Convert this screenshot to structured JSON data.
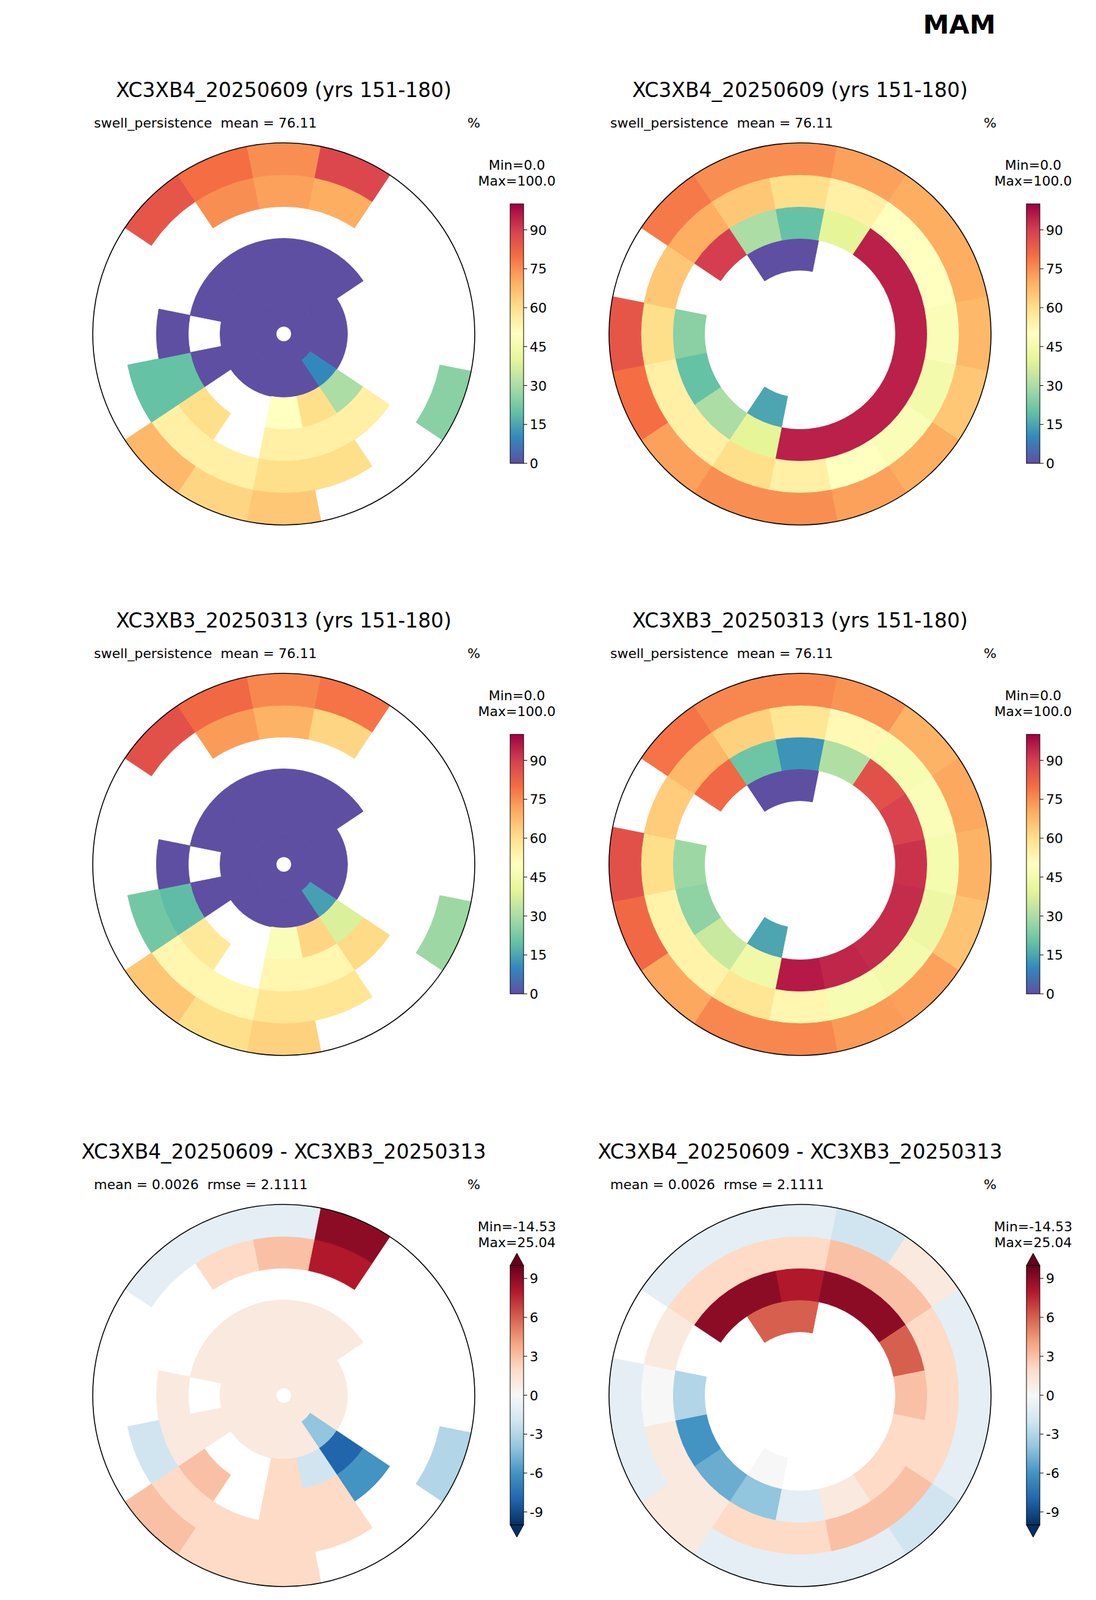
{
  "title": "MAM",
  "chart_data": [
    {
      "type": "heatmap",
      "title": "XC3XB4_20250609 (yrs 151-180)",
      "variable": "swell_persistence",
      "stats": [
        "mean = 76.11"
      ],
      "units": "%",
      "min_label": "Min=0.0",
      "max_label": "Max=100.0",
      "colorbar": {
        "range": [
          0,
          100
        ],
        "ticks": [
          0,
          15,
          30,
          45,
          60,
          75,
          90
        ]
      },
      "cells": [
        [
          0,
          0,
          0,
          0,
          0,
          0,
          0,
          0,
          0,
          0,
          0,
          0,
          0,
          0,
          0,
          0
        ],
        [
          0,
          0,
          0,
          0,
          0,
          0,
          10,
          0,
          0,
          0,
          0,
          0,
          0,
          0,
          0,
          0
        ],
        [
          0,
          0,
          0,
          null,
          null,
          null,
          30,
          60,
          50,
          null,
          null,
          0,
          null,
          0,
          0,
          0
        ],
        [
          null,
          null,
          null,
          null,
          null,
          null,
          55,
          55,
          55,
          null,
          60,
          20,
          0,
          null,
          null,
          null
        ],
        [
          72,
          70,
          null,
          null,
          null,
          null,
          null,
          60,
          60,
          55,
          55,
          20,
          null,
          null,
          null,
          75
        ],
        [
          75,
          88,
          null,
          null,
          null,
          25,
          null,
          null,
          65,
          62,
          68,
          null,
          null,
          null,
          85,
          80
        ]
      ]
    },
    {
      "type": "heatmap",
      "title": "XC3XB4_20250609 (yrs 151-180)",
      "variable": "swell_persistence",
      "stats": [
        "mean = 76.11"
      ],
      "units": "%",
      "min_label": "Min=0.0",
      "max_label": "Max=100.0",
      "colorbar": {
        "range": [
          0,
          100
        ],
        "ticks": [
          0,
          15,
          30,
          45,
          60,
          75,
          90
        ]
      },
      "cells": [
        [
          null,
          null,
          null,
          null,
          null,
          null,
          null,
          null,
          null,
          null,
          null,
          null,
          null,
          null,
          null,
          null
        ],
        [
          null,
          null,
          null,
          null,
          null,
          null,
          null,
          null,
          null,
          null,
          null,
          null,
          null,
          null,
          null,
          null
        ],
        [
          0,
          null,
          null,
          null,
          null,
          null,
          null,
          null,
          null,
          15,
          null,
          null,
          null,
          null,
          null,
          0
        ],
        [
          20,
          40,
          95,
          95,
          95,
          95,
          95,
          95,
          95,
          40,
          30,
          20,
          25,
          null,
          90,
          30
        ],
        [
          60,
          55,
          50,
          50,
          48,
          45,
          48,
          50,
          55,
          60,
          55,
          55,
          60,
          65,
          70,
          65
        ],
        [
          75,
          72,
          70,
          70,
          68,
          65,
          70,
          72,
          75,
          75,
          72,
          80,
          85,
          null,
          78,
          75
        ]
      ]
    },
    {
      "type": "heatmap",
      "title": "XC3XB3_20250313 (yrs 151-180)",
      "variable": "swell_persistence",
      "stats": [
        "mean = 76.11"
      ],
      "units": "%",
      "min_label": "Min=0.0",
      "max_label": "Max=100.0",
      "colorbar": {
        "range": [
          0,
          100
        ],
        "ticks": [
          0,
          15,
          30,
          45,
          60,
          75,
          90
        ]
      },
      "cells": [
        [
          0,
          0,
          0,
          0,
          0,
          0,
          0,
          0,
          0,
          0,
          0,
          0,
          0,
          0,
          0,
          0
        ],
        [
          0,
          0,
          0,
          0,
          0,
          0,
          14,
          0,
          0,
          0,
          0,
          0,
          0,
          0,
          0,
          0
        ],
        [
          0,
          0,
          0,
          null,
          null,
          null,
          38,
          62,
          48,
          null,
          null,
          0,
          null,
          0,
          0,
          0
        ],
        [
          null,
          null,
          null,
          null,
          null,
          null,
          61,
          53,
          53,
          null,
          57,
          19,
          0,
          null,
          null,
          null
        ],
        [
          69,
          62,
          null,
          null,
          null,
          null,
          null,
          58,
          58,
          53,
          53,
          22,
          null,
          null,
          null,
          73
        ],
        [
          76,
          79,
          null,
          null,
          null,
          28,
          null,
          null,
          63,
          60,
          65,
          null,
          null,
          null,
          86,
          81
        ]
      ]
    },
    {
      "type": "heatmap",
      "title": "XC3XB3_20250313 (yrs 151-180)",
      "variable": "swell_persistence",
      "stats": [
        "mean = 76.11"
      ],
      "units": "%",
      "min_label": "Min=0.0",
      "max_label": "Max=100.0",
      "colorbar": {
        "range": [
          0,
          100
        ],
        "ticks": [
          0,
          15,
          30,
          45,
          60,
          75,
          90
        ]
      },
      "cells": [
        [
          null,
          null,
          null,
          null,
          null,
          null,
          null,
          null,
          null,
          null,
          null,
          null,
          null,
          null,
          null,
          null
        ],
        [
          null,
          null,
          null,
          null,
          null,
          null,
          null,
          null,
          null,
          null,
          null,
          null,
          null,
          null,
          null,
          null
        ],
        [
          0,
          null,
          null,
          null,
          null,
          null,
          null,
          null,
          null,
          15,
          null,
          null,
          null,
          null,
          null,
          0
        ],
        [
          12,
          31,
          86,
          89,
          92,
          93,
          93,
          94,
          96,
          44,
          35,
          26,
          28,
          null,
          81,
          21
        ],
        [
          58,
          52,
          47,
          48,
          46,
          43,
          45,
          47,
          53,
          58,
          54,
          54,
          60,
          64,
          68,
          63
        ],
        [
          76,
          74,
          69,
          71,
          69,
          66,
          72,
          73,
          76,
          76,
          71,
          81,
          86,
          null,
          79,
          76
        ]
      ]
    },
    {
      "type": "heatmap",
      "title": "XC3XB4_20250609 - XC3XB3_20250313",
      "stats": [
        "mean = 0.0026",
        "rmse = 2.1111"
      ],
      "units": "%",
      "min_label": "Min=-14.53",
      "max_label": "Max=25.04",
      "colorbar": {
        "range": [
          -10,
          10
        ],
        "ticks": [
          -9,
          -6,
          -3,
          0,
          3,
          6,
          9
        ]
      },
      "cells": [
        [
          1,
          1,
          1,
          1,
          1,
          1,
          1,
          1,
          1,
          1,
          1,
          1,
          1,
          1,
          1,
          1
        ],
        [
          1,
          1,
          1,
          1,
          1,
          1,
          -4,
          1,
          1,
          1,
          1,
          1,
          1,
          1,
          1,
          1
        ],
        [
          1,
          1,
          1,
          null,
          null,
          null,
          -8,
          -2,
          2,
          null,
          null,
          1,
          null,
          1,
          1,
          1
        ],
        [
          null,
          null,
          null,
          null,
          null,
          null,
          -6,
          2,
          2,
          null,
          3,
          1,
          1,
          null,
          null,
          null
        ],
        [
          3,
          8,
          null,
          null,
          null,
          null,
          null,
          2,
          2,
          2,
          2,
          -2,
          null,
          null,
          null,
          2
        ],
        [
          -1,
          9,
          null,
          null,
          null,
          -3,
          null,
          null,
          2,
          2,
          3,
          null,
          null,
          null,
          -1,
          -1
        ]
      ]
    },
    {
      "type": "heatmap",
      "title": "XC3XB4_20250609 - XC3XB3_20250313",
      "stats": [
        "mean = 0.0026",
        "rmse = 2.1111"
      ],
      "units": "%",
      "min_label": "Min=-14.53",
      "max_label": "Max=25.04",
      "colorbar": {
        "range": [
          -10,
          10
        ],
        "ticks": [
          -9,
          -6,
          -3,
          0,
          3,
          6,
          9
        ]
      },
      "cells": [
        [
          null,
          null,
          null,
          null,
          null,
          null,
          null,
          null,
          null,
          null,
          null,
          null,
          null,
          null,
          null,
          null
        ],
        [
          null,
          null,
          null,
          null,
          null,
          null,
          null,
          null,
          null,
          null,
          null,
          null,
          null,
          null,
          null,
          null
        ],
        [
          6,
          null,
          null,
          null,
          null,
          null,
          null,
          null,
          null,
          0,
          null,
          null,
          null,
          null,
          null,
          6
        ],
        [
          8,
          9,
          9,
          6,
          3,
          2,
          2,
          1,
          -1,
          -4,
          -5,
          -6,
          -3,
          null,
          9,
          9
        ],
        [
          2,
          3,
          3,
          2,
          2,
          2,
          3,
          3,
          2,
          2,
          1,
          1,
          0,
          1,
          2,
          2
        ],
        [
          -1,
          -2,
          1,
          -1,
          -1,
          -1,
          -2,
          -1,
          -1,
          -1,
          1,
          -1,
          -1,
          null,
          -1,
          -1
        ]
      ]
    }
  ]
}
